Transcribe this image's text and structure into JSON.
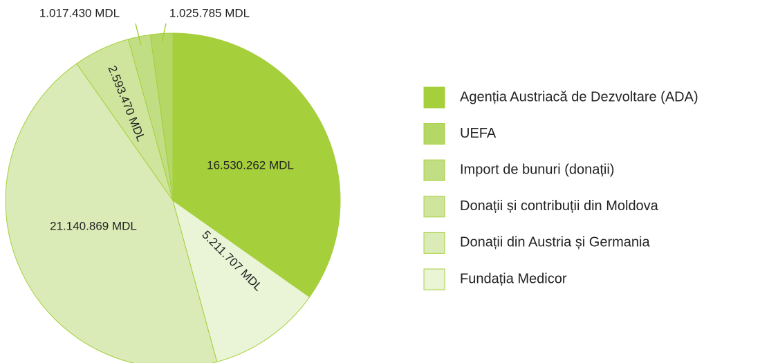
{
  "chart_data": {
    "type": "pie",
    "categories": [
      "Agenția Austriacă de Dezvoltare (ADA)",
      "UEFA",
      "Import de bunuri (donații)",
      "Donații și contribuții din Moldova",
      "Donații din Austria și Germania",
      "Fundația Medicor"
    ],
    "values": [
      16530262,
      1025785,
      1017430,
      2593470,
      21140869,
      5211707
    ],
    "value_labels": [
      "16.530.262 MDL",
      "1.025.785 MDL",
      "1.017.430 MDL",
      "2.593.470 MDL",
      "21.140.869 MDL",
      "5.211.707 MDL"
    ],
    "colors": [
      "#a5cf3b",
      "#b4d766",
      "#c2de85",
      "#cfe59e",
      "#dbebb7",
      "#eaf4d6"
    ],
    "legend": "right"
  }
}
